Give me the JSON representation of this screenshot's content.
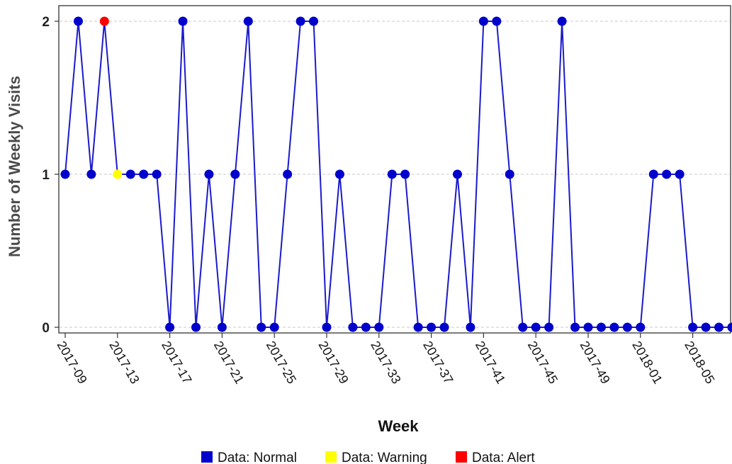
{
  "chart_data": {
    "type": "line",
    "xlabel": "Week",
    "ylabel": "Number of Weekly Visits",
    "ylim": [
      0,
      2
    ],
    "yticks": [
      "0",
      "1",
      "2"
    ],
    "xtick_labels": [
      "2017-09",
      "2017-13",
      "2017-17",
      "2017-21",
      "2017-25",
      "2017-29",
      "2017-33",
      "2017-37",
      "2017-41",
      "2017-45",
      "2017-49",
      "2018-01",
      "2018-05"
    ],
    "grid": "horizontal dashed at y ticks",
    "legend_position": "bottom",
    "legend": [
      {
        "label": "Data: Normal",
        "color": "#0000cc"
      },
      {
        "label": "Data: Warning",
        "color": "#ffff00"
      },
      {
        "label": "Data: Alert",
        "color": "#ff0000"
      }
    ],
    "line_color": "#1a1acc",
    "x": [
      "2017-09",
      "2017-10",
      "2017-11",
      "2017-12",
      "2017-13",
      "2017-14",
      "2017-15",
      "2017-16",
      "2017-17",
      "2017-18",
      "2017-19",
      "2017-20",
      "2017-21",
      "2017-22",
      "2017-23",
      "2017-24",
      "2017-25",
      "2017-26",
      "2017-27",
      "2017-28",
      "2017-29",
      "2017-30",
      "2017-31",
      "2017-32",
      "2017-33",
      "2017-34",
      "2017-35",
      "2017-36",
      "2017-37",
      "2017-38",
      "2017-39",
      "2017-40",
      "2017-41",
      "2017-42",
      "2017-43",
      "2017-44",
      "2017-45",
      "2017-46",
      "2017-47",
      "2017-48",
      "2017-49",
      "2017-50",
      "2017-51",
      "2017-52",
      "2018-01",
      "2018-02",
      "2018-03",
      "2018-04",
      "2018-05",
      "2018-06",
      "2018-07",
      "2018-08"
    ],
    "values": [
      1,
      2,
      1,
      2,
      1,
      1,
      1,
      1,
      0,
      2,
      0,
      1,
      0,
      1,
      2,
      0,
      0,
      1,
      2,
      2,
      0,
      1,
      0,
      0,
      0,
      1,
      1,
      0,
      0,
      0,
      1,
      0,
      2,
      2,
      1,
      0,
      0,
      0,
      2,
      0,
      0,
      0,
      0,
      0,
      0,
      1,
      1,
      1,
      0,
      0,
      0,
      0
    ],
    "status": [
      "normal",
      "normal",
      "normal",
      "alert",
      "warning",
      "normal",
      "normal",
      "normal",
      "normal",
      "normal",
      "normal",
      "normal",
      "normal",
      "normal",
      "normal",
      "normal",
      "normal",
      "normal",
      "normal",
      "normal",
      "normal",
      "normal",
      "normal",
      "normal",
      "normal",
      "normal",
      "normal",
      "normal",
      "normal",
      "normal",
      "normal",
      "normal",
      "normal",
      "normal",
      "normal",
      "normal",
      "normal",
      "normal",
      "normal",
      "normal",
      "normal",
      "normal",
      "normal",
      "normal",
      "normal",
      "normal",
      "normal",
      "normal",
      "normal",
      "normal",
      "normal",
      "normal"
    ],
    "status_colors": {
      "normal": "#0000cc",
      "warning": "#ffff00",
      "alert": "#ff0000"
    }
  }
}
